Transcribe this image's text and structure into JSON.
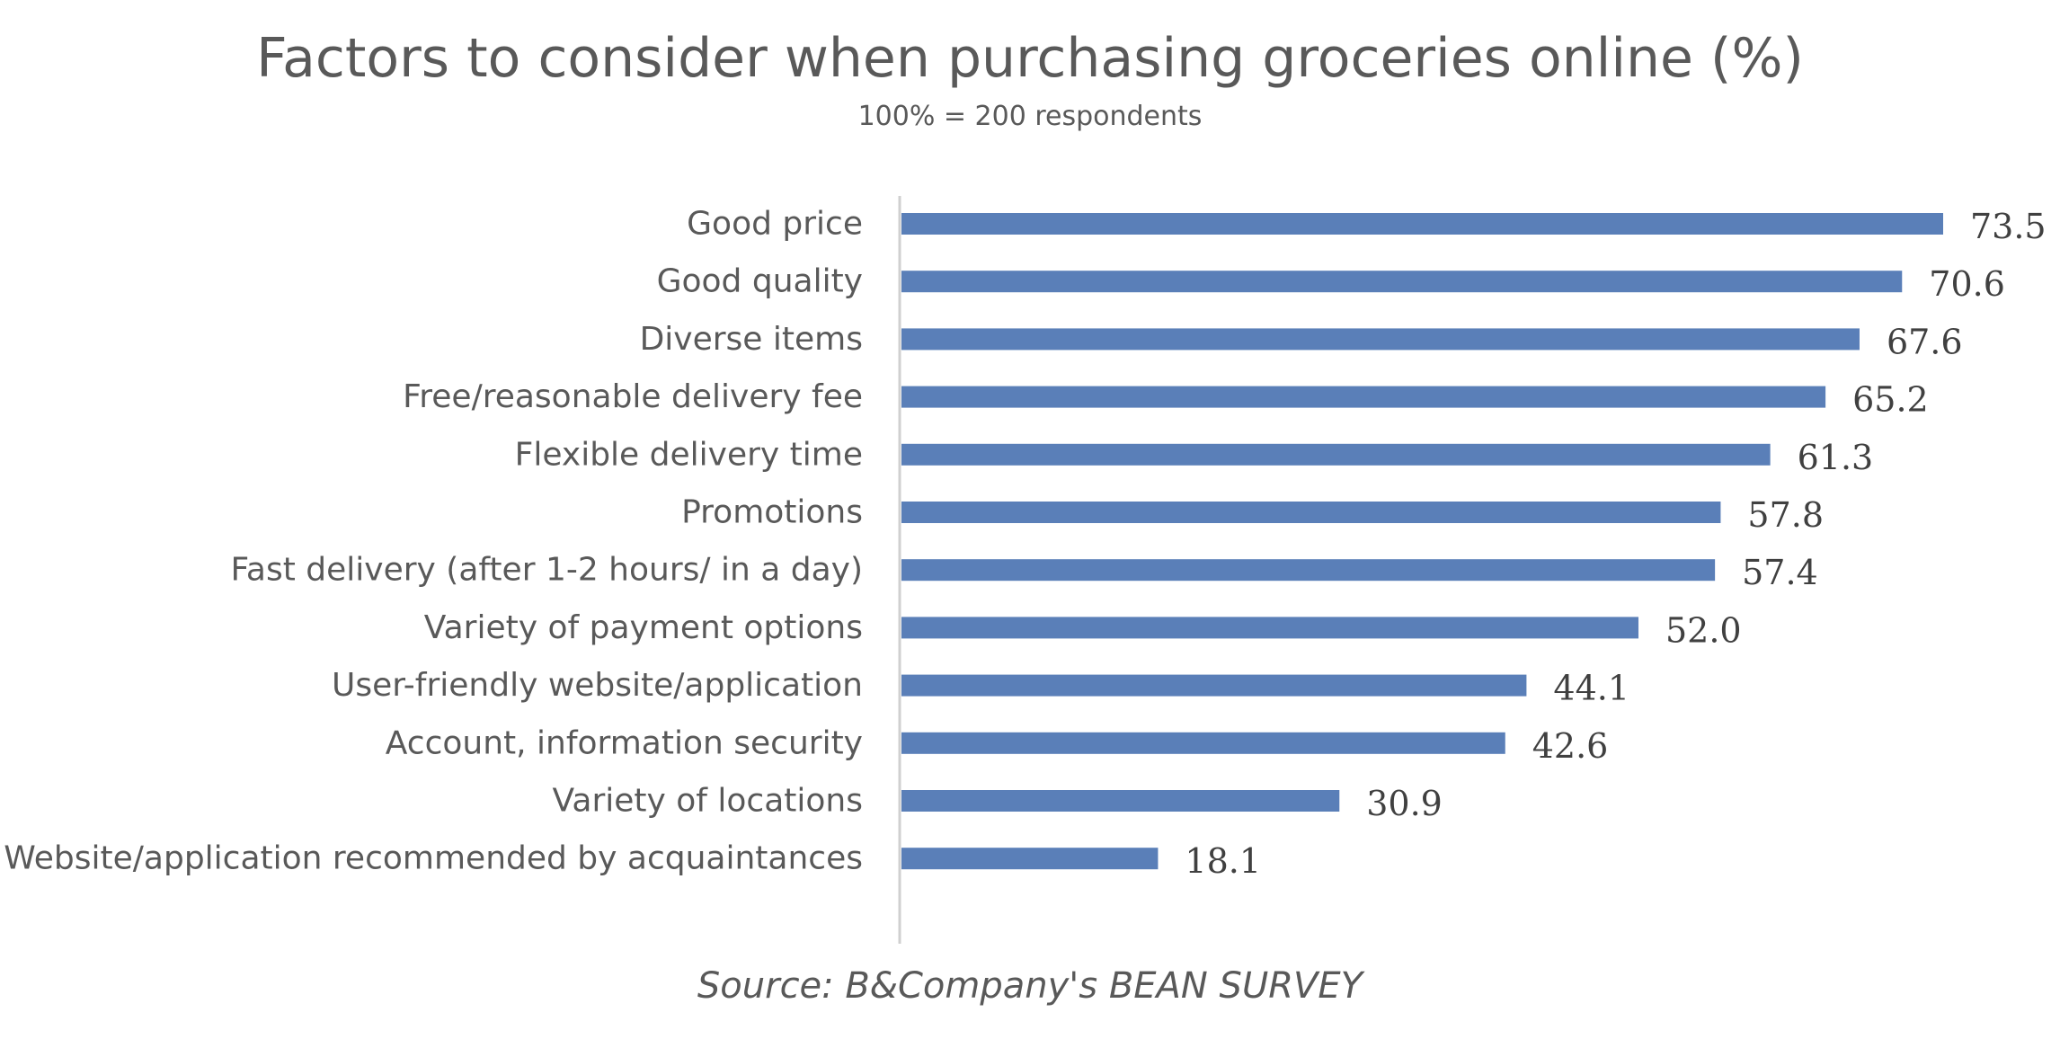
{
  "chart_data": {
    "type": "bar",
    "orientation": "horizontal",
    "title": "Factors to consider when purchasing groceries online (%)",
    "subtitle": "100% = 200 respondents",
    "source": "Source: B&Company's BEAN SURVEY",
    "categories": [
      "Good price",
      "Good quality",
      "Diverse items",
      "Free/reasonable delivery fee",
      "Flexible delivery time",
      "Promotions",
      "Fast delivery (after 1-2 hours/ in a day)",
      "Variety of payment options",
      "User-friendly website/application",
      "Account, information security",
      "Variety of locations",
      "Website/application recommended by acquaintances"
    ],
    "values": [
      73.5,
      70.6,
      67.6,
      65.2,
      61.3,
      57.8,
      57.4,
      52.0,
      44.1,
      42.6,
      30.9,
      18.1
    ],
    "value_labels": [
      "73.5",
      "70.6",
      "67.6",
      "65.2",
      "61.3",
      "57.8",
      "57.4",
      "52.0",
      "44.1",
      "42.6",
      "30.9",
      "18.1"
    ],
    "xlim": [
      0,
      80
    ],
    "grid": false,
    "legend": "none",
    "bar_color": "#5a7fb8",
    "axis_color": "#d0d0d0",
    "text_color": "#595959"
  }
}
